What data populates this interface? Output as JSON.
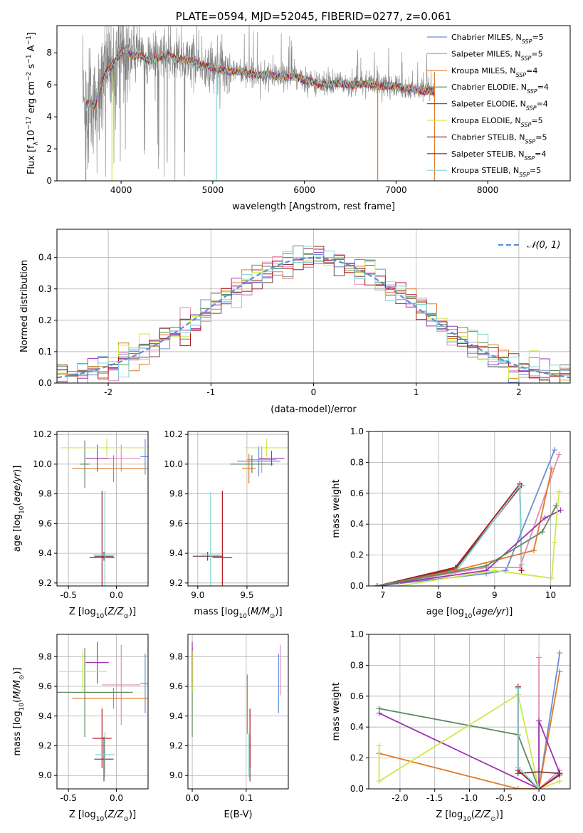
{
  "colors": {
    "Chabrier MILES": "#6a8fd8",
    "Salpeter MILES": "#e58ab8",
    "Kroupa MILES": "#e07b2b",
    "Chabrier ELODIE": "#5e8a60",
    "Salpeter ELODIE": "#9b33b0",
    "Kroupa ELODIE": "#cde94a",
    "Chabrier STELIB": "#7a4040",
    "Salpeter STELIB": "#b0151a",
    "Kroupa STELIB": "#80d4d4",
    "data": "#808080",
    "gaussian": "#5b8ed6",
    "grid": "#b0b0b0"
  },
  "chart_data": [
    {
      "id": "spectrum",
      "type": "line",
      "title": "PLATE=0594, MJD=52045, FIBERID=0277, z=0.061",
      "xlabel": "wavelength [Angstrom, rest frame]",
      "ylabel": "Flux [f_λ 10^-17 erg cm^-2 s^-1 A^-1]",
      "xlim": [
        3300,
        8900
      ],
      "ylim": [
        0,
        9.7
      ],
      "xticks": [
        4000,
        5000,
        6000,
        7000,
        8000
      ],
      "yticks": [
        0,
        2,
        4,
        6,
        8
      ],
      "legend_position": "top-right",
      "legend": [
        {
          "model": "Chabrier MILES",
          "label": "Chabrier MILES, N",
          "nssp": "5"
        },
        {
          "model": "Salpeter MILES",
          "label": "Salpeter MILES, N",
          "nssp": "5"
        },
        {
          "model": "Kroupa MILES",
          "label": "Kroupa MILES, N",
          "nssp": "4"
        },
        {
          "model": "Chabrier ELODIE",
          "label": "Chabrier ELODIE, N",
          "nssp": "4"
        },
        {
          "model": "Salpeter ELODIE",
          "label": "Salpeter ELODIE, N",
          "nssp": "4"
        },
        {
          "model": "Kroupa ELODIE",
          "label": "Kroupa ELODIE, N",
          "nssp": "5"
        },
        {
          "model": "Chabrier STELIB",
          "label": "Chabrier STELIB, N",
          "nssp": "5"
        },
        {
          "model": "Salpeter STELIB",
          "label": "Salpeter STELIB, N",
          "nssp": "4"
        },
        {
          "model": "Kroupa STELIB",
          "label": "Kroupa STELIB, N",
          "nssp": "5"
        }
      ],
      "legend_subscript": "SSP",
      "continuum": [
        [
          3600,
          4.7
        ],
        [
          3650,
          4.9
        ],
        [
          3700,
          4.6
        ],
        [
          3750,
          5.2
        ],
        [
          3800,
          6.3
        ],
        [
          3850,
          6.9
        ],
        [
          3900,
          7.2
        ],
        [
          3950,
          7.6
        ],
        [
          4000,
          8.0
        ],
        [
          4050,
          8.2
        ],
        [
          4100,
          7.9
        ],
        [
          4150,
          7.8
        ],
        [
          4200,
          7.9
        ],
        [
          4300,
          7.5
        ],
        [
          4400,
          7.7
        ],
        [
          4500,
          7.9
        ],
        [
          4600,
          7.6
        ],
        [
          4700,
          7.6
        ],
        [
          4800,
          7.4
        ],
        [
          4900,
          7.2
        ],
        [
          5000,
          7.1
        ],
        [
          5100,
          6.9
        ],
        [
          5200,
          6.8
        ],
        [
          5300,
          6.85
        ],
        [
          5400,
          6.7
        ],
        [
          5500,
          6.6
        ],
        [
          5600,
          6.65
        ],
        [
          5700,
          6.55
        ],
        [
          5800,
          6.45
        ],
        [
          5900,
          6.5
        ],
        [
          6000,
          6.3
        ],
        [
          6100,
          6.15
        ],
        [
          6200,
          6.0
        ],
        [
          6300,
          6.05
        ],
        [
          6400,
          6.1
        ],
        [
          6500,
          6.0
        ],
        [
          6600,
          6.0
        ],
        [
          6700,
          6.05
        ],
        [
          6800,
          5.9
        ],
        [
          6900,
          5.95
        ],
        [
          7000,
          5.9
        ],
        [
          7100,
          5.8
        ],
        [
          7200,
          5.7
        ],
        [
          7300,
          5.6
        ],
        [
          7420,
          5.6
        ]
      ]
    },
    {
      "id": "residuals",
      "type": "line",
      "xlabel": "(data-model)/error",
      "ylabel": "Normed distribution",
      "xlim": [
        -2.5,
        2.5
      ],
      "ylim": [
        0,
        0.49
      ],
      "xticks": [
        -2,
        -1,
        0,
        1,
        2
      ],
      "yticks": [
        0.0,
        0.1,
        0.2,
        0.3,
        0.4
      ],
      "legend_position": "top-right",
      "series": [
        {
          "name": "𝒩(0, 1)",
          "mu": 0,
          "sigma": 1,
          "style": "dashed"
        }
      ],
      "histogram_bin_width": 0.1
    },
    {
      "id": "age-vs-Z",
      "type": "scatter",
      "xlabel": "Z [log10(Z/Z⊙)]",
      "ylabel": "age [log10(age/yr)]",
      "xlim": [
        -0.62,
        0.33
      ],
      "ylim": [
        9.18,
        10.22
      ],
      "xticks": [
        -0.5,
        0.0
      ],
      "yticks": [
        9.2,
        9.4,
        9.6,
        9.8,
        10.0,
        10.2
      ],
      "points": [
        {
          "model": "Chabrier MILES",
          "x": 0.3,
          "xerr": 0.05,
          "y": 10.05,
          "yerr": 0.12
        },
        {
          "model": "Salpeter MILES",
          "x": 0.05,
          "xerr": 0.2,
          "y": 10.04,
          "yerr": 0.09
        },
        {
          "model": "Kroupa MILES",
          "x": -0.03,
          "xerr": 0.43,
          "y": 9.97,
          "yerr": 0.09
        },
        {
          "model": "Chabrier ELODIE",
          "x": -0.33,
          "xerr": 0.05,
          "y": 10.0,
          "yerr": 0.16
        },
        {
          "model": "Salpeter ELODIE",
          "x": -0.2,
          "xerr": 0.12,
          "y": 10.04,
          "yerr": 0.09
        },
        {
          "model": "Kroupa ELODIE",
          "x": -0.1,
          "xerr": 0.48,
          "y": 10.11,
          "yerr": 0.06
        },
        {
          "model": "Chabrier STELIB",
          "x": -0.13,
          "xerr": 0.1,
          "y": 9.38,
          "yerr": 0.03
        },
        {
          "model": "Salpeter STELIB",
          "x": -0.15,
          "xerr": 0.13,
          "y": 9.37,
          "yerr": 0.45
        },
        {
          "model": "Kroupa STELIB",
          "x": -0.12,
          "xerr": 0.12,
          "y": 9.39,
          "yerr": 0.43
        }
      ]
    },
    {
      "id": "age-vs-mass",
      "type": "scatter",
      "xlabel": "mass [log10(M/M⊙)]",
      "ylabel": "",
      "xlim": [
        8.9,
        9.92
      ],
      "ylim": [
        9.18,
        10.22
      ],
      "xticks": [
        9.0,
        9.5
      ],
      "yticks": [
        9.2,
        9.4,
        9.6,
        9.8,
        10.0,
        10.2
      ],
      "points": [
        {
          "model": "Chabrier MILES",
          "x": 9.62,
          "xerr": 0.22,
          "y": 10.02,
          "yerr": 0.1
        },
        {
          "model": "Salpeter MILES",
          "x": 9.65,
          "xerr": 0.15,
          "y": 10.03,
          "yerr": 0.09
        },
        {
          "model": "Kroupa MILES",
          "x": 9.52,
          "xerr": 0.07,
          "y": 9.97,
          "yerr": 0.1
        },
        {
          "model": "Chabrier ELODIE",
          "x": 9.55,
          "xerr": 0.22,
          "y": 10.0,
          "yerr": 0.06
        },
        {
          "model": "Salpeter ELODIE",
          "x": 9.75,
          "xerr": 0.13,
          "y": 10.04,
          "yerr": 0.05
        },
        {
          "model": "Kroupa ELODIE",
          "x": 9.7,
          "xerr": 0.22,
          "y": 10.11,
          "yerr": 0.06
        },
        {
          "model": "Chabrier STELIB",
          "x": 9.1,
          "xerr": 0.15,
          "y": 9.38,
          "yerr": 0.03
        },
        {
          "model": "Salpeter STELIB",
          "x": 9.25,
          "xerr": 0.1,
          "y": 9.37,
          "yerr": 0.45
        },
        {
          "model": "Kroupa STELIB",
          "x": 9.13,
          "xerr": 0.1,
          "y": 9.39,
          "yerr": 0.42
        }
      ]
    },
    {
      "id": "weight-vs-age",
      "type": "line",
      "xlabel": "age [log10(age/yr)]",
      "ylabel": "mass weight",
      "xlim": [
        6.75,
        10.35
      ],
      "ylim": [
        0,
        1.0
      ],
      "xticks": [
        7,
        8,
        9,
        10
      ],
      "yticks": [
        0.0,
        0.2,
        0.4,
        0.6,
        0.8,
        1.0
      ],
      "series": [
        {
          "model": "Salpeter STELIB",
          "x": [
            6.9,
            8.3,
            9.45,
            9.48
          ],
          "y": [
            0.0,
            0.12,
            0.66,
            0.1
          ]
        },
        {
          "model": "Chabrier STELIB",
          "x": [
            6.9,
            8.3,
            9.48
          ],
          "y": [
            0.0,
            0.11,
            0.65
          ]
        },
        {
          "model": "Kroupa STELIB",
          "x": [
            6.9,
            8.3,
            9.45,
            9.48
          ],
          "y": [
            0.0,
            0.09,
            0.65,
            0.14
          ]
        },
        {
          "model": "Chabrier MILES",
          "x": [
            6.9,
            8.85,
            9.2,
            10.07
          ],
          "y": [
            0.0,
            0.08,
            0.1,
            0.88
          ]
        },
        {
          "model": "Salpeter MILES",
          "x": [
            6.9,
            8.85,
            9.45,
            10.15
          ],
          "y": [
            0.0,
            0.12,
            0.12,
            0.85
          ]
        },
        {
          "model": "Kroupa MILES",
          "x": [
            6.9,
            8.3,
            9.7,
            10.02
          ],
          "y": [
            0.0,
            0.1,
            0.23,
            0.76
          ]
        },
        {
          "model": "Salpeter ELODIE",
          "x": [
            6.9,
            8.85,
            9.9,
            10.18
          ],
          "y": [
            0.0,
            0.1,
            0.44,
            0.49
          ]
        },
        {
          "model": "Chabrier ELODIE",
          "x": [
            6.9,
            8.85,
            9.85,
            10.1
          ],
          "y": [
            0.0,
            0.13,
            0.35,
            0.52
          ]
        },
        {
          "model": "Kroupa ELODIE",
          "x": [
            7.3,
            9.0,
            10.02,
            10.07,
            10.15
          ],
          "y": [
            0.0,
            0.1,
            0.05,
            0.28,
            0.61
          ]
        }
      ]
    },
    {
      "id": "mass-vs-Z",
      "type": "scatter",
      "xlabel": "Z [log10(Z/Z⊙)]",
      "ylabel": "mass [log10(M/M⊙)]",
      "xlim": [
        -0.62,
        0.33
      ],
      "ylim": [
        8.91,
        9.95
      ],
      "xticks": [
        -0.5,
        0.0
      ],
      "yticks": [
        9.0,
        9.2,
        9.4,
        9.6,
        9.8
      ],
      "points": [
        {
          "model": "Chabrier MILES",
          "x": 0.3,
          "xerr": 0.05,
          "y": 9.62,
          "yerr": 0.2
        },
        {
          "model": "Salpeter MILES",
          "x": 0.05,
          "xerr": 0.2,
          "y": 9.61,
          "yerr": 0.27
        },
        {
          "model": "Kroupa MILES",
          "x": -0.03,
          "xerr": 0.43,
          "y": 9.52,
          "yerr": 0.07
        },
        {
          "model": "Chabrier ELODIE",
          "x": -0.33,
          "xerr": 0.5,
          "y": 9.56,
          "yerr": 0.3
        },
        {
          "model": "Salpeter ELODIE",
          "x": -0.2,
          "xerr": 0.12,
          "y": 9.76,
          "yerr": 0.14
        },
        {
          "model": "Kroupa ELODIE",
          "x": -0.35,
          "xerr": 0.25,
          "y": 9.7,
          "yerr": 0.14
        },
        {
          "model": "Chabrier STELIB",
          "x": -0.13,
          "xerr": 0.1,
          "y": 9.11,
          "yerr": 0.15
        },
        {
          "model": "Salpeter STELIB",
          "x": -0.15,
          "xerr": 0.1,
          "y": 9.25,
          "yerr": 0.2
        },
        {
          "model": "Kroupa STELIB",
          "x": -0.12,
          "xerr": 0.1,
          "y": 9.14,
          "yerr": 0.15
        }
      ]
    },
    {
      "id": "mass-vs-ebv",
      "type": "scatter",
      "xlabel": "E(B-V)",
      "ylabel": "",
      "xlim": [
        -0.008,
        0.178
      ],
      "ylim": [
        8.91,
        9.95
      ],
      "xticks": [
        0.0,
        0.1
      ],
      "yticks": [
        9.0,
        9.2,
        9.4,
        9.6,
        9.8
      ],
      "points": [
        {
          "model": "Chabrier MILES",
          "x": 0.16,
          "y": 9.62,
          "yerr": 0.2
        },
        {
          "model": "Salpeter MILES",
          "x": 0.163,
          "y": 9.71,
          "yerr": 0.17
        },
        {
          "model": "Kroupa MILES",
          "x": 0.102,
          "y": 9.48,
          "yerr": 0.2
        },
        {
          "model": "Chabrier ELODIE",
          "x": 0.0,
          "y": 9.56,
          "yerr": 0.3
        },
        {
          "model": "Salpeter ELODIE",
          "x": 0.0,
          "y": 9.76,
          "yerr": 0.14
        },
        {
          "model": "Kroupa ELODIE",
          "x": 0.001,
          "y": 9.7,
          "yerr": 0.14
        },
        {
          "model": "Chabrier STELIB",
          "x": 0.107,
          "y": 9.11,
          "yerr": 0.15
        },
        {
          "model": "Salpeter STELIB",
          "x": 0.107,
          "y": 9.25,
          "yerr": 0.2
        },
        {
          "model": "Kroupa STELIB",
          "x": 0.105,
          "y": 9.14,
          "yerr": 0.15
        }
      ]
    },
    {
      "id": "weight-vs-Z",
      "type": "line",
      "xlabel": "Z [log10(Z/Z⊙)]",
      "ylabel": "mass weight",
      "xlim": [
        -2.45,
        0.45
      ],
      "ylim": [
        0,
        1.0
      ],
      "xticks": [
        -2.0,
        -1.5,
        -1.0,
        -0.5,
        0.0
      ],
      "yticks": [
        0.0,
        0.2,
        0.4,
        0.6,
        0.8,
        1.0
      ],
      "series": [
        {
          "model": "Chabrier MILES",
          "x": [
            0.3,
            0.0,
            0.3
          ],
          "y": [
            0.88,
            0.0,
            0.1
          ]
        },
        {
          "model": "Salpeter MILES",
          "x": [
            0.0,
            0.0,
            0.3
          ],
          "y": [
            0.85,
            0.0,
            0.12
          ]
        },
        {
          "model": "Kroupa MILES",
          "x": [
            -2.3,
            -0.3,
            0.0,
            0.3
          ],
          "y": [
            0.23,
            0.0,
            0.0,
            0.76
          ]
        },
        {
          "model": "Chabrier ELODIE",
          "x": [
            -2.3,
            -0.3,
            0.0
          ],
          "y": [
            0.52,
            0.35,
            0.0
          ]
        },
        {
          "model": "Salpeter ELODIE",
          "x": [
            -2.3,
            0.0,
            0.0,
            0.3
          ],
          "y": [
            0.49,
            0.0,
            0.44,
            0.1
          ]
        },
        {
          "model": "Kroupa ELODIE",
          "x": [
            -2.3,
            -2.3,
            -0.3,
            0.0,
            0.3
          ],
          "y": [
            0.28,
            0.05,
            0.61,
            0.0,
            0.05
          ]
        },
        {
          "model": "Chabrier STELIB",
          "x": [
            -0.3,
            -0.3,
            0.0,
            0.3
          ],
          "y": [
            0.66,
            0.1,
            0.11,
            0.1
          ]
        },
        {
          "model": "Salpeter STELIB",
          "x": [
            -0.3,
            -0.3,
            0.0,
            0.3
          ],
          "y": [
            0.66,
            0.12,
            0.0,
            0.09
          ]
        },
        {
          "model": "Kroupa STELIB",
          "x": [
            -0.3,
            -0.3,
            0.0
          ],
          "y": [
            0.65,
            0.14,
            0.0
          ]
        }
      ]
    }
  ]
}
